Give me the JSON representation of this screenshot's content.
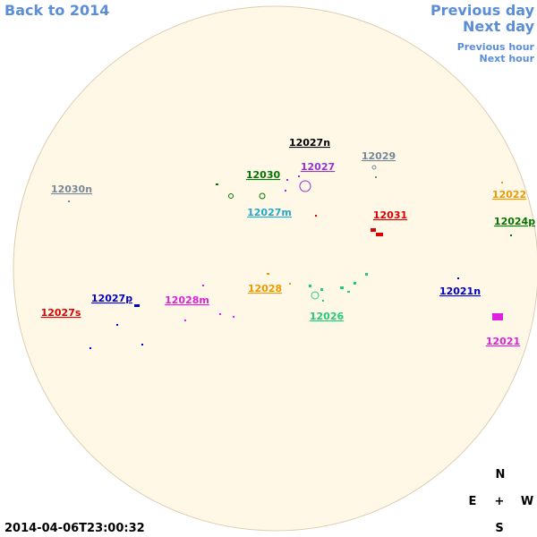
{
  "nav": {
    "back": "Back to 2014",
    "previous_day": "Previous day",
    "next_day": "Next day",
    "previous_hour": "Previous hour",
    "next_hour": "Next hour"
  },
  "regions": [
    {
      "label": "12027n",
      "color": "#000000"
    },
    {
      "label": "12029",
      "color": "#778899"
    },
    {
      "label": "12027",
      "color": "#9933cc"
    },
    {
      "label": "12030",
      "color": "#007700"
    },
    {
      "label": "12022",
      "color": "#ee9900"
    },
    {
      "label": "12030n",
      "color": "#778899"
    },
    {
      "label": "12027m",
      "color": "#22aacc"
    },
    {
      "label": "12031",
      "color": "#dd0000"
    },
    {
      "label": "12024p",
      "color": "#007700"
    },
    {
      "label": "12028",
      "color": "#ee9900"
    },
    {
      "label": "12021n",
      "color": "#0000cc"
    },
    {
      "label": "12027p",
      "color": "#0000cc"
    },
    {
      "label": "12028m",
      "color": "#dd22dd"
    },
    {
      "label": "12027s",
      "color": "#dd0000"
    },
    {
      "label": "12026",
      "color": "#22cc77"
    },
    {
      "label": "12021",
      "color": "#dd22dd"
    }
  ],
  "compass": {
    "north": "N",
    "east": "E",
    "center": "+",
    "west": "W",
    "south": "S"
  },
  "timestamp": "2014-04-06T23:00:32"
}
